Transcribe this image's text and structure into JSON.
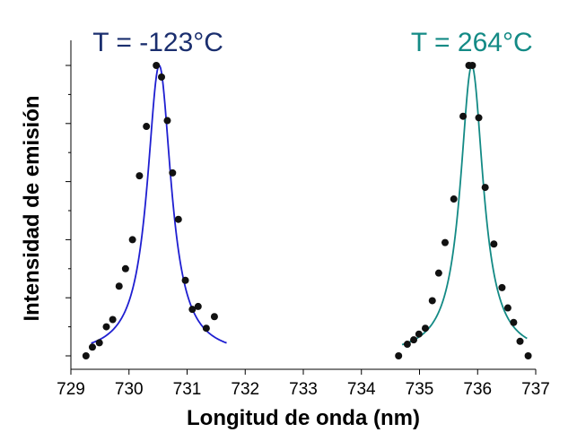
{
  "chart_data": {
    "type": "scatter",
    "xlabel": "Longitud de onda (nm)",
    "ylabel": "Intensidad de emisión",
    "xlim": [
      729,
      737
    ],
    "ylim": [
      0,
      1
    ],
    "x_ticks": [
      "729",
      "730",
      "731",
      "732",
      "733",
      "734",
      "735",
      "736",
      "737"
    ],
    "y_tick_count": 6,
    "y_tick_labels_shown": false,
    "grid": false,
    "legend": "none",
    "annotations": [
      {
        "text": "T = -123°C",
        "color": "#1a2e6e",
        "x": 730.5,
        "y": 1.08
      },
      {
        "text": "T = 264°C",
        "color": "#138a85",
        "x": 735.9,
        "y": 1.08
      }
    ],
    "series": [
      {
        "marker_color": "#111111",
        "fit_color": "#1f1fd1",
        "fit": {
          "center": 730.52,
          "width": 0.5,
          "amplitude": 1.0,
          "x_range": [
            729.35,
            731.68
          ]
        },
        "points": [
          [
            729.26,
            0.0
          ],
          [
            729.37,
            0.03
          ],
          [
            729.49,
            0.045
          ],
          [
            729.61,
            0.1
          ],
          [
            729.72,
            0.125
          ],
          [
            729.83,
            0.24
          ],
          [
            729.94,
            0.3
          ],
          [
            730.06,
            0.4
          ],
          [
            730.18,
            0.62
          ],
          [
            730.3,
            0.79
          ],
          [
            730.47,
            1.0
          ],
          [
            730.56,
            0.96
          ],
          [
            730.66,
            0.81
          ],
          [
            730.75,
            0.63
          ],
          [
            730.85,
            0.47
          ],
          [
            730.97,
            0.26
          ],
          [
            731.09,
            0.16
          ],
          [
            731.19,
            0.17
          ],
          [
            731.33,
            0.095
          ],
          [
            731.47,
            0.135
          ]
        ]
      },
      {
        "marker_color": "#111111",
        "fit_color": "#138a85",
        "fit": {
          "center": 735.9,
          "width": 0.48,
          "amplitude": 1.0,
          "x_range": [
            734.7,
            736.85
          ]
        },
        "points": [
          [
            734.64,
            0.0
          ],
          [
            734.79,
            0.04
          ],
          [
            734.9,
            0.055
          ],
          [
            734.99,
            0.075
          ],
          [
            735.1,
            0.095
          ],
          [
            735.22,
            0.19
          ],
          [
            735.33,
            0.285
          ],
          [
            735.44,
            0.39
          ],
          [
            735.59,
            0.54
          ],
          [
            735.75,
            0.825
          ],
          [
            735.85,
            1.0
          ],
          [
            735.91,
            1.0
          ],
          [
            736.02,
            0.82
          ],
          [
            736.13,
            0.58
          ],
          [
            736.28,
            0.385
          ],
          [
            736.42,
            0.235
          ],
          [
            736.52,
            0.165
          ],
          [
            736.62,
            0.115
          ],
          [
            736.73,
            0.05
          ],
          [
            736.87,
            0.0
          ]
        ]
      }
    ]
  }
}
